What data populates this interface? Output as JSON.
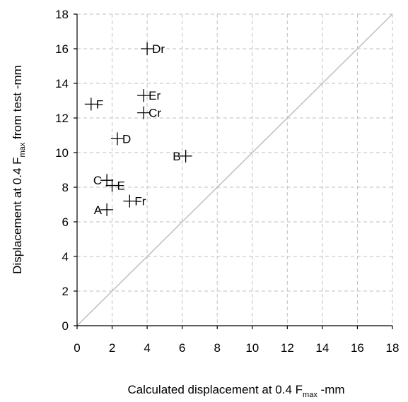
{
  "chart_data": {
    "type": "scatter",
    "xlabel": {
      "prefix": "Calculated displacement at 0.4 F",
      "sub": "max",
      "suffix": " -mm"
    },
    "ylabel": {
      "prefix": "Displacement at 0.4 F",
      "sub": "max",
      "suffix": "  from test -mm"
    },
    "xlim": [
      0,
      18
    ],
    "ylim": [
      0,
      18
    ],
    "xticks": [
      0,
      2,
      4,
      6,
      8,
      10,
      12,
      14,
      16,
      18
    ],
    "yticks": [
      0,
      2,
      4,
      6,
      8,
      10,
      12,
      14,
      16,
      18
    ],
    "grid": true,
    "marker": "plus",
    "reference_line": {
      "from": [
        0,
        0
      ],
      "to": [
        18,
        18
      ],
      "color": "#bfbfbf"
    },
    "points": [
      {
        "label": "Dr",
        "x": 4.0,
        "y": 16.0,
        "label_side": "right"
      },
      {
        "label": "Er",
        "x": 3.8,
        "y": 13.3,
        "label_side": "right"
      },
      {
        "label": "F",
        "x": 0.8,
        "y": 12.8,
        "label_side": "right"
      },
      {
        "label": "Cr",
        "x": 3.8,
        "y": 12.3,
        "label_side": "right"
      },
      {
        "label": "D",
        "x": 2.3,
        "y": 10.8,
        "label_side": "right"
      },
      {
        "label": "B",
        "x": 6.2,
        "y": 9.8,
        "label_side": "left"
      },
      {
        "label": "C",
        "x": 1.7,
        "y": 8.4,
        "label_side": "left"
      },
      {
        "label": "E",
        "x": 2.0,
        "y": 8.1,
        "label_side": "right"
      },
      {
        "label": "Fr",
        "x": 3.0,
        "y": 7.2,
        "label_side": "right"
      },
      {
        "label": "A",
        "x": 1.7,
        "y": 6.7,
        "label_side": "left"
      }
    ],
    "colors": {
      "marker": "#000000",
      "grid": "#bfbfbf",
      "axis": "#000000"
    }
  }
}
